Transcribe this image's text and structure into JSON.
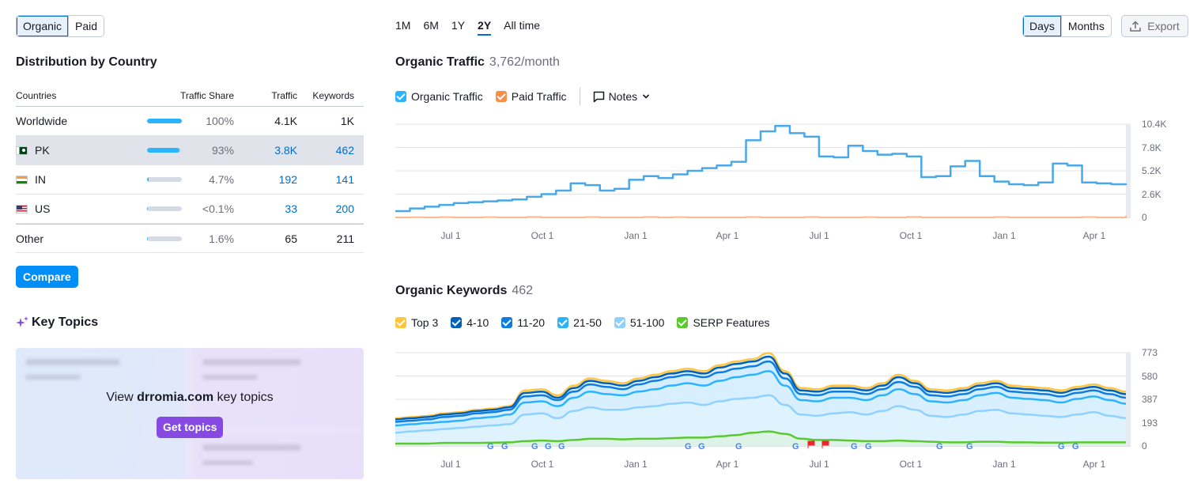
{
  "traffic_type": {
    "options": [
      "Organic",
      "Paid"
    ],
    "selected": "Organic"
  },
  "distribution": {
    "title": "Distribution by Country",
    "columns": {
      "countries": "Countries",
      "share": "Traffic Share",
      "traffic": "Traffic",
      "keywords": "Keywords"
    },
    "rows": [
      {
        "country": "Worldwide",
        "flag": "",
        "share_pct": 100,
        "share": "100%",
        "traffic": "4.1K",
        "keywords": "1K"
      },
      {
        "country": "PK",
        "flag": "pk-flag",
        "share_pct": 93,
        "share": "93%",
        "traffic": "3.8K",
        "keywords": "462"
      },
      {
        "country": "IN",
        "flag": "in-flag",
        "share_pct": 4.7,
        "share": "4.7%",
        "traffic": "192",
        "keywords": "141"
      },
      {
        "country": "US",
        "flag": "us-flag",
        "share_pct": 0.1,
        "share": "<0.1%",
        "traffic": "33",
        "keywords": "200"
      },
      {
        "country": "Other",
        "flag": "",
        "share_pct": 1.6,
        "share": "1.6%",
        "traffic": "65",
        "keywords": "211"
      }
    ],
    "compare_label": "Compare"
  },
  "key_topics": {
    "title": "Key Topics",
    "icon": "sparkle-icon",
    "text_prefix": "View",
    "domain": "drromia.com",
    "text_suffix": "key topics",
    "button_label": "Get topics"
  },
  "periods": {
    "options": [
      "1M",
      "6M",
      "1Y",
      "2Y",
      "All time"
    ],
    "selected": "2Y"
  },
  "granularity": {
    "options": [
      "Days",
      "Months"
    ],
    "selected": "Days"
  },
  "export_label": "Export",
  "organic_traffic": {
    "title": "Organic Traffic",
    "value": "3,762/month",
    "legend": [
      {
        "label": "Organic Traffic",
        "color": "#2bb3ff"
      },
      {
        "label": "Paid Traffic",
        "color": "#ff8c43"
      }
    ],
    "notes_label": "Notes"
  },
  "organic_keywords": {
    "title": "Organic Keywords",
    "value": "462",
    "legend": [
      {
        "label": "Top 3",
        "color": "#ffc53d"
      },
      {
        "label": "4-10",
        "color": "#0060ba"
      },
      {
        "label": "11-20",
        "color": "#0f7de0"
      },
      {
        "label": "21-50",
        "color": "#2bb3ff"
      },
      {
        "label": "51-100",
        "color": "#8fd1ff"
      },
      {
        "label": "SERP Features",
        "color": "#59c92e"
      }
    ]
  },
  "chart_data": [
    {
      "type": "line",
      "x_ticks": [
        "Jul 1",
        "Oct 1",
        "Jan 1",
        "Apr 1",
        "Jul 1",
        "Oct 1",
        "Jan 1",
        "Apr 1"
      ],
      "y_ticks": [
        "10.4K",
        "7.8K",
        "5.2K",
        "2.6K",
        "0"
      ],
      "ylim": [
        0,
        10400
      ],
      "grid": true,
      "series": [
        {
          "name": "Organic Traffic",
          "color": "#48a8ea",
          "values": [
            700,
            1000,
            1200,
            1400,
            1600,
            1700,
            1800,
            1900,
            2000,
            2300,
            2600,
            3000,
            3800,
            3600,
            3000,
            3200,
            4200,
            4600,
            4400,
            4800,
            5200,
            5500,
            5800,
            6200,
            8600,
            9600,
            10200,
            9400,
            9000,
            6800,
            6700,
            8000,
            7400,
            7000,
            7100,
            6800,
            4500,
            4600,
            5700,
            6300,
            4600,
            4000,
            3700,
            3600,
            3900,
            6000,
            5800,
            3900,
            3800,
            3700,
            3600
          ]
        },
        {
          "name": "Paid Traffic",
          "color": "#ffb98a",
          "values": [
            0,
            20,
            0,
            30,
            0,
            0,
            30,
            0,
            0,
            60,
            0,
            0,
            0,
            40,
            0,
            0,
            0,
            50,
            0,
            30,
            0,
            0,
            0,
            0,
            40,
            0,
            0,
            0,
            60,
            0,
            0,
            0,
            30,
            0,
            0,
            50,
            0,
            0,
            0,
            0,
            0,
            40,
            0,
            0,
            0,
            0,
            0,
            40,
            0,
            0,
            200
          ]
        }
      ]
    },
    {
      "type": "area",
      "x_ticks": [
        "Jul 1",
        "Oct 1",
        "Jan 1",
        "Apr 1",
        "Jul 1",
        "Oct 1",
        "Jan 1",
        "Apr 1"
      ],
      "y_ticks": [
        "773",
        "580",
        "387",
        "193",
        "0"
      ],
      "ylim": [
        0,
        773
      ],
      "grid": true,
      "series": [
        {
          "name": "Top 3",
          "color": "#ffc53d",
          "values": [
            230,
            240,
            250,
            270,
            280,
            300,
            310,
            330,
            460,
            470,
            420,
            500,
            560,
            540,
            520,
            560,
            590,
            620,
            640,
            620,
            670,
            700,
            720,
            770,
            620,
            480,
            470,
            500,
            500,
            480,
            520,
            590,
            540,
            470,
            460,
            480,
            520,
            540,
            500,
            490,
            480,
            460,
            490,
            510,
            480,
            450
          ]
        },
        {
          "name": "4-10",
          "color": "#0060ba",
          "values": [
            220,
            230,
            240,
            260,
            270,
            290,
            300,
            320,
            440,
            450,
            400,
            480,
            540,
            520,
            500,
            540,
            570,
            600,
            620,
            600,
            650,
            680,
            700,
            740,
            600,
            460,
            450,
            480,
            480,
            460,
            500,
            570,
            520,
            450,
            440,
            460,
            500,
            520,
            480,
            470,
            460,
            440,
            470,
            490,
            460,
            430
          ]
        },
        {
          "name": "11-20",
          "color": "#0f7de0",
          "values": [
            200,
            210,
            220,
            240,
            250,
            270,
            280,
            300,
            410,
            420,
            380,
            450,
            510,
            490,
            470,
            510,
            540,
            570,
            590,
            570,
            610,
            640,
            660,
            700,
            560,
            430,
            420,
            450,
            450,
            430,
            470,
            530,
            490,
            420,
            410,
            430,
            470,
            490,
            450,
            440,
            430,
            410,
            440,
            460,
            430,
            400
          ]
        },
        {
          "name": "21-50",
          "color": "#2bb3ff",
          "values": [
            170,
            180,
            190,
            200,
            210,
            230,
            240,
            260,
            360,
            370,
            330,
            400,
            450,
            430,
            420,
            450,
            470,
            500,
            520,
            500,
            540,
            570,
            590,
            620,
            500,
            380,
            370,
            400,
            400,
            380,
            420,
            470,
            430,
            370,
            360,
            380,
            420,
            440,
            400,
            390,
            380,
            360,
            390,
            410,
            380,
            350
          ]
        },
        {
          "name": "51-100",
          "color": "#8fd1ff",
          "values": [
            110,
            120,
            130,
            140,
            150,
            160,
            170,
            180,
            260,
            270,
            230,
            290,
            320,
            300,
            300,
            320,
            330,
            350,
            360,
            340,
            370,
            390,
            400,
            420,
            340,
            260,
            250,
            270,
            280,
            260,
            290,
            330,
            300,
            250,
            240,
            260,
            290,
            300,
            270,
            260,
            250,
            240,
            260,
            280,
            250,
            230
          ]
        },
        {
          "name": "SERP Features",
          "color": "#59c92e",
          "values": [
            20,
            20,
            20,
            25,
            25,
            25,
            28,
            30,
            40,
            45,
            40,
            50,
            60,
            60,
            55,
            60,
            60,
            65,
            70,
            70,
            80,
            90,
            110,
            120,
            100,
            60,
            50,
            50,
            45,
            40,
            40,
            45,
            40,
            35,
            30,
            30,
            35,
            35,
            30,
            30,
            28,
            28,
            30,
            30,
            30,
            30
          ]
        }
      ]
    }
  ]
}
